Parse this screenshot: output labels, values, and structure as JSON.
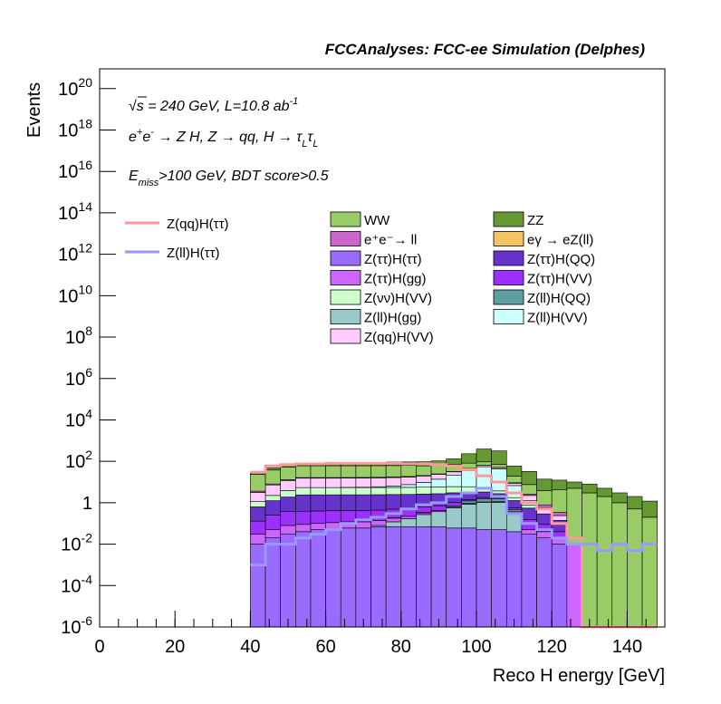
{
  "chart_data": {
    "type": "histogram",
    "stacked": true,
    "title": "FCCAnalyses: FCC-ee Simulation (Delphes)",
    "xlabel": "Reco H energy [GeV]",
    "ylabel": "Events",
    "annotations": [
      [
        [
          "√s = 240 GeV, L=10.8 ab",
          ""
        ],
        [
          "-1",
          "sup"
        ]
      ],
      [
        [
          "e",
          ""
        ],
        [
          "+",
          "sup"
        ],
        [
          "e",
          ""
        ],
        [
          "-",
          "sup"
        ],
        [
          " → Z H, Z  → qq, H  → τ",
          ""
        ],
        [
          "L",
          "sub"
        ],
        [
          "τ",
          ""
        ],
        [
          "L",
          "sub"
        ]
      ],
      [
        [
          "E",
          ""
        ],
        [
          "miss",
          "sub"
        ],
        [
          ">100 GeV, BDT score>0.5",
          ""
        ]
      ]
    ],
    "xlim": [
      0,
      150
    ],
    "xticks": [
      0,
      20,
      40,
      60,
      80,
      100,
      120,
      140
    ],
    "ylim": [
      1e-06,
      9e+20
    ],
    "log_y": true,
    "yticks": [
      {
        "value": 1e-06,
        "label": "10",
        "exp": "-6"
      },
      {
        "value": 0.0001,
        "label": "10",
        "exp": "-4"
      },
      {
        "value": 0.01,
        "label": "10",
        "exp": "-2"
      },
      1,
      {
        "value": 100,
        "label": "10",
        "exp": "2"
      },
      {
        "value": 10000.0,
        "label": "10",
        "exp": "4"
      },
      {
        "value": 1000000.0,
        "label": "10",
        "exp": "6"
      },
      {
        "value": 100000000.0,
        "label": "10",
        "exp": "8"
      },
      {
        "value": 10000000000.0,
        "label": "10",
        "exp": "10"
      },
      {
        "value": 1000000000000.0,
        "label": "10",
        "exp": "12"
      },
      {
        "value": 100000000000000.0,
        "label": "10",
        "exp": "14"
      },
      {
        "value": 1e+16,
        "label": "10",
        "exp": "16"
      },
      {
        "value": 1e+18,
        "label": "10",
        "exp": "18"
      },
      {
        "value": 1e+20,
        "label": "10",
        "exp": "20"
      }
    ],
    "bins": [
      40,
      44,
      48,
      52,
      56,
      60,
      64,
      68,
      72,
      76,
      80,
      84,
      88,
      92,
      96,
      100,
      104,
      108,
      112,
      116,
      120,
      124,
      128,
      132,
      136,
      140,
      144,
      148
    ],
    "series": [
      {
        "name": "Z(ττ)H(ττ)",
        "color": "#9a6bff",
        "values": [
          0.01,
          0.02,
          0.03,
          0.04,
          0.05,
          0.05,
          0.06,
          0.06,
          0.07,
          0.07,
          0.07,
          0.07,
          0.07,
          0.06,
          0.06,
          0.05,
          0.05,
          0.04,
          0.03,
          0.02,
          0.01,
          0,
          0,
          0,
          0,
          0,
          0
        ]
      },
      {
        "name": "Z(ll)H(gg)",
        "color": "#99c9c9",
        "values": [
          0,
          0,
          0,
          0,
          0,
          0,
          0,
          0,
          0.01,
          0.05,
          0.1,
          0.2,
          0.3,
          0.5,
          0.8,
          1,
          1,
          0.3,
          0,
          0,
          0,
          0,
          0,
          0,
          0,
          0,
          0
        ]
      },
      {
        "name": "Z(ττ)H(gg)",
        "color": "#cc66ff",
        "values": [
          0.02,
          0.03,
          0.05,
          0.05,
          0.05,
          0.06,
          0.06,
          0.06,
          0.06,
          0.06,
          0.05,
          0.05,
          0.05,
          0.05,
          0.04,
          0.04,
          0.03,
          0.03,
          0.02,
          0.02,
          0.01,
          0.01,
          0,
          0,
          0,
          0,
          0
        ]
      },
      {
        "name": "eγ → eZ(ll)",
        "color": "#f5c462",
        "values": [
          0,
          0,
          0,
          0,
          0,
          0,
          0,
          0,
          0,
          0.01,
          0,
          0.02,
          0,
          0,
          0.03,
          0,
          0.05,
          0,
          0,
          0,
          0,
          0,
          0,
          0,
          0,
          0,
          0
        ]
      },
      {
        "name": "Z(ll)H(QQ)",
        "color": "#5f9ea0",
        "values": [
          0,
          0,
          0,
          0,
          0,
          0,
          0,
          0,
          0,
          0,
          0,
          0,
          0,
          0.1,
          0.3,
          0.5,
          0.4,
          0.1,
          0,
          0,
          0,
          0,
          0,
          0,
          0,
          0,
          0
        ]
      },
      {
        "name": "Z(ττ)H(VV)",
        "color": "#9b30ff",
        "values": [
          0.1,
          0.2,
          0.3,
          0.3,
          0.3,
          0.3,
          0.3,
          0.3,
          0.3,
          0.3,
          0.3,
          0.3,
          0.3,
          0.3,
          0.2,
          0.2,
          0.2,
          0.1,
          0.1,
          0.05,
          0.02,
          0,
          0,
          0,
          0,
          0,
          0
        ]
      },
      {
        "name": "Z(ττ)H(QQ)",
        "color": "#6633cc",
        "values": [
          0.5,
          1,
          1.5,
          2,
          2,
          2,
          2,
          2,
          2,
          2,
          2,
          2,
          2,
          2,
          1.5,
          1.5,
          1,
          0.7,
          0.4,
          0.2,
          0.1,
          0,
          0,
          0,
          0,
          0,
          0
        ]
      },
      {
        "name": "Z(νν)H(VV)",
        "color": "#ccffcc",
        "values": [
          0.5,
          1,
          2,
          3,
          3,
          3,
          3,
          3,
          3,
          3,
          3,
          3,
          3,
          3,
          3,
          2,
          1,
          0.5,
          0.2,
          0,
          0,
          0,
          0,
          0,
          0,
          0,
          0
        ]
      },
      {
        "name": "Z(ll)H(VV)",
        "color": "#ccffff",
        "values": [
          0,
          0,
          0,
          0,
          0,
          0,
          0.1,
          0.2,
          0.5,
          1,
          2,
          4,
          8,
          15,
          30,
          50,
          40,
          5,
          0.5,
          0,
          0,
          0,
          0,
          0,
          0,
          0,
          0
        ]
      },
      {
        "name": "Z(qq)H(VV)",
        "color": "#ffccff",
        "values": [
          2,
          5,
          8,
          10,
          10,
          10,
          10,
          10,
          10,
          10,
          10,
          10,
          10,
          10,
          10,
          8,
          6,
          2,
          1,
          0.3,
          0.1,
          0,
          0,
          0,
          0,
          0,
          0
        ]
      },
      {
        "name": "e⁺e⁻→ ll",
        "color": "#cc66cc",
        "values": [
          0.5,
          0.8,
          1,
          1,
          1,
          1,
          1,
          1,
          1,
          1,
          1,
          1,
          1,
          1,
          1,
          1,
          1,
          0.5,
          0.3,
          0.2,
          0.1,
          0,
          0,
          0,
          0,
          0,
          0
        ]
      },
      {
        "name": "WW",
        "color": "#99cc66",
        "values": [
          20,
          30,
          40,
          45,
          45,
          45,
          45,
          45,
          45,
          45,
          45,
          40,
          40,
          40,
          35,
          30,
          20,
          10,
          5,
          3,
          4,
          5,
          3,
          2,
          1,
          0.5,
          0.2
        ]
      },
      {
        "name": "ZZ",
        "color": "#669933",
        "values": [
          5,
          10,
          15,
          15,
          15,
          15,
          20,
          20,
          25,
          30,
          30,
          35,
          40,
          60,
          150,
          300,
          250,
          40,
          25,
          10,
          8,
          5,
          5,
          3,
          2,
          1.5,
          1
        ]
      }
    ],
    "lines": [
      {
        "name": "Z(qq)H(ττ)",
        "color": "#ff9999",
        "values": [
          30,
          60,
          70,
          75,
          75,
          80,
          80,
          80,
          80,
          80,
          75,
          75,
          70,
          60,
          40,
          20,
          10,
          3,
          1,
          0.5,
          0.1,
          0.02,
          0,
          0,
          0,
          0,
          0
        ]
      },
      {
        "name": "Z(ll)H(ττ)",
        "color": "#9999ff",
        "values": [
          0.001,
          0.01,
          0.01,
          0.02,
          0.03,
          0.05,
          0.1,
          0.15,
          0.2,
          0.3,
          0.5,
          0.8,
          1,
          2,
          3,
          5,
          2,
          0.3,
          0.1,
          0.05,
          0.02,
          0.01,
          0.01,
          0.005,
          0.01,
          0.005,
          0.01
        ]
      }
    ]
  }
}
